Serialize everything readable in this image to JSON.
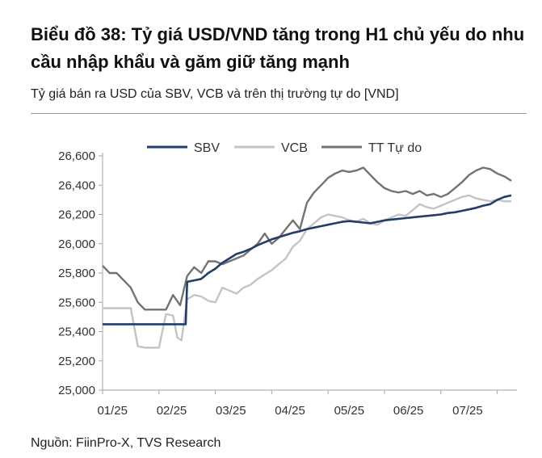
{
  "figure": {
    "title": "Biểu đồ 38: Tỷ giá USD/VND tăng trong H1 chủ yếu do nhu cầu nhập khẩu và găm giữ tăng mạnh",
    "subtitle": "Tỷ giá bán ra USD của SBV, VCB và trên thị trường tự do [VND]",
    "source": "Nguồn: FiinPro-X, TVS Research"
  },
  "chart_data": {
    "type": "line",
    "ylim": [
      25000,
      26600
    ],
    "yticks": [
      25000,
      25200,
      25400,
      25600,
      25800,
      26000,
      26200,
      26400,
      26600
    ],
    "ytick_labels": [
      "25,000",
      "25,200",
      "25,400",
      "25,600",
      "25,800",
      "26,000",
      "26,200",
      "26,400",
      "26,600"
    ],
    "xlim": [
      0,
      29.4
    ],
    "xticks": [
      0,
      4,
      8,
      12,
      16,
      20,
      24,
      28
    ],
    "xtick_labels": [
      "01/25",
      "02/25",
      "03/25",
      "04/25",
      "05/25",
      "06/25",
      "07/25"
    ],
    "xtick_positions": [
      0.7,
      4.9,
      9.1,
      13.3,
      17.5,
      21.7,
      25.9
    ],
    "legend_position": "top",
    "colors": {
      "SBV": "#1f3d73",
      "VCB": "#c4c4c4",
      "TT Tự do": "#737373"
    },
    "series": [
      {
        "name": "SBV",
        "x": [
          0,
          1,
          2,
          3,
          4,
          5,
          5.9,
          6.0,
          6.5,
          7,
          7.5,
          8,
          8.5,
          9,
          9.5,
          10,
          10.5,
          11,
          11.5,
          12,
          12.5,
          13,
          13.5,
          14,
          14.5,
          15,
          15.5,
          16,
          16.5,
          17,
          17.5,
          18,
          18.5,
          19,
          19.5,
          20,
          20.5,
          21,
          21.5,
          22,
          22.5,
          23,
          23.5,
          24,
          24.5,
          25,
          25.5,
          26,
          26.5,
          27,
          27.5,
          28,
          28.5,
          29
        ],
        "values": [
          25450,
          25450,
          25450,
          25450,
          25450,
          25450,
          25450,
          25740,
          25750,
          25760,
          25800,
          25830,
          25870,
          25900,
          25930,
          25945,
          25965,
          25990,
          26010,
          26030,
          26045,
          26060,
          26075,
          26085,
          26100,
          26110,
          26120,
          26130,
          26140,
          26150,
          26155,
          26150,
          26145,
          26140,
          26150,
          26160,
          26165,
          26170,
          26175,
          26180,
          26185,
          26190,
          26195,
          26200,
          26210,
          26215,
          26225,
          26235,
          26245,
          26260,
          26270,
          26300,
          26320,
          26330
        ]
      },
      {
        "name": "VCB",
        "x": [
          0,
          1,
          2,
          2.5,
          3,
          3.5,
          4,
          4.5,
          5,
          5.3,
          5.6,
          6.0,
          6.5,
          7,
          7.5,
          8,
          8.5,
          9,
          9.5,
          10,
          10.5,
          11,
          11.5,
          12,
          12.5,
          13,
          13.5,
          14,
          14.5,
          15,
          15.5,
          16,
          16.5,
          17,
          17.5,
          18,
          18.5,
          19,
          19.5,
          20,
          20.5,
          21,
          21.5,
          22,
          22.5,
          23,
          23.5,
          24,
          24.5,
          25,
          25.5,
          26,
          26.5,
          27,
          27.5,
          28,
          28.5,
          29
        ],
        "values": [
          25560,
          25560,
          25560,
          25300,
          25290,
          25290,
          25290,
          25520,
          25510,
          25360,
          25340,
          25620,
          25650,
          25640,
          25610,
          25600,
          25700,
          25680,
          25660,
          25700,
          25720,
          25760,
          25790,
          25820,
          25860,
          25900,
          25980,
          26020,
          26100,
          26140,
          26180,
          26200,
          26190,
          26180,
          26160,
          26150,
          26170,
          26140,
          26130,
          26160,
          26180,
          26200,
          26190,
          26230,
          26270,
          26250,
          26240,
          26260,
          26280,
          26300,
          26320,
          26330,
          26310,
          26300,
          26290,
          26300,
          26290,
          26290
        ]
      },
      {
        "name": "TT Tự do",
        "x": [
          0,
          0.5,
          1,
          2,
          2.5,
          3,
          3.5,
          4,
          4.5,
          5,
          5.5,
          6.0,
          6.5,
          7,
          7.5,
          8,
          8.5,
          9,
          9.5,
          10,
          10.5,
          11,
          11.5,
          12,
          12.5,
          13,
          13.5,
          14,
          14.5,
          15,
          15.5,
          16,
          16.5,
          17,
          17.5,
          18,
          18.5,
          19,
          19.5,
          20,
          20.5,
          21,
          21.5,
          22,
          22.5,
          23,
          23.5,
          24,
          24.5,
          25,
          25.5,
          26,
          26.5,
          27,
          27.5,
          28,
          28.5,
          29
        ],
        "values": [
          25850,
          25800,
          25800,
          25700,
          25600,
          25550,
          25550,
          25550,
          25550,
          25650,
          25580,
          25780,
          25840,
          25800,
          25880,
          25880,
          25860,
          25880,
          25900,
          25920,
          25960,
          26000,
          26070,
          26000,
          26040,
          26100,
          26160,
          26100,
          26280,
          26350,
          26400,
          26450,
          26480,
          26500,
          26490,
          26500,
          26520,
          26470,
          26420,
          26380,
          26360,
          26350,
          26360,
          26340,
          26360,
          26330,
          26340,
          26320,
          26340,
          26380,
          26420,
          26470,
          26500,
          26520,
          26510,
          26480,
          26460,
          26430
        ]
      }
    ]
  }
}
